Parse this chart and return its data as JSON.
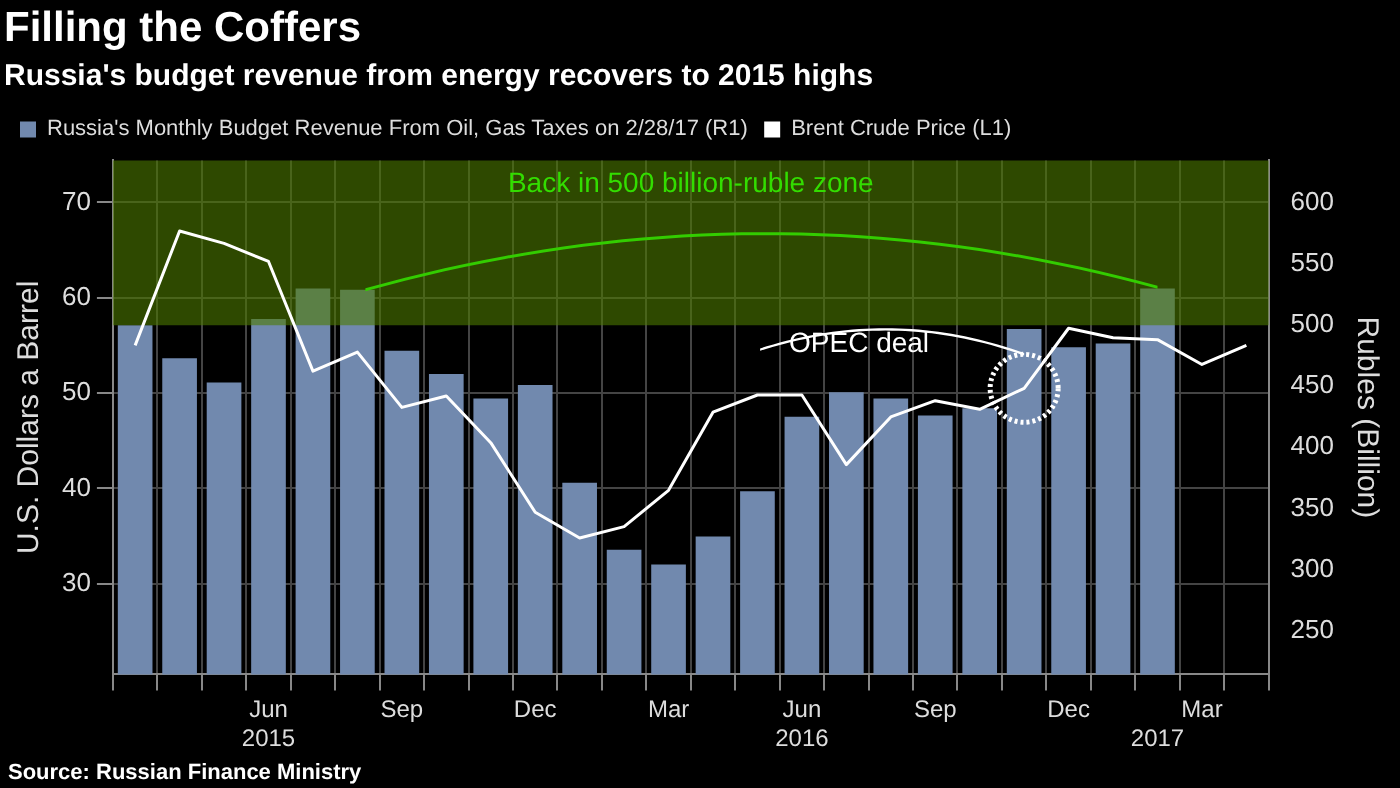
{
  "chart_data": {
    "type": "bar",
    "title": "Filling the Coffers",
    "subtitle": "Russia's budget revenue from energy recovers to 2015 highs",
    "ylabel": "U.S. Dollars a Barrel",
    "y2label": "Rubles (Billion)",
    "categories": [
      null,
      null,
      null,
      "Jun\n2015",
      null,
      null,
      "Sep",
      null,
      null,
      "Dec",
      null,
      null,
      "Mar",
      null,
      null,
      "Jun\n2016",
      null,
      null,
      "Sep",
      null,
      null,
      "Dec",
      null,
      "\n2017",
      "Mar",
      null
    ],
    "series": [
      {
        "name": "Russia's Monthly Budget Revenue From Oil, Gas Taxes on 2/28/17 (R1)",
        "axis": "y2",
        "color": "#7189ae",
        "values": [
          500,
          473,
          453,
          505,
          530,
          529,
          479,
          460,
          440,
          451,
          371,
          316,
          304,
          327,
          364,
          425,
          445,
          440,
          426,
          432,
          497,
          482,
          485,
          530,
          null,
          null
        ]
      },
      {
        "name": "Brent Crude Price (L1)",
        "type": "line",
        "color": "#ffffff",
        "values": [
          55.0,
          67.0,
          65.7,
          63.8,
          52.3,
          54.3,
          48.5,
          49.7,
          44.8,
          37.5,
          34.8,
          36.0,
          39.8,
          48.0,
          49.8,
          49.8,
          42.5,
          47.5,
          49.2,
          48.3,
          50.5,
          56.8,
          55.8,
          55.6,
          53.0,
          55.0
        ]
      }
    ],
    "ylim": [
      20.5,
      74.4
    ],
    "yticks": [
      30,
      40,
      50,
      60,
      70
    ],
    "y2lim": [
      214,
      635
    ],
    "y2ticks": [
      250,
      300,
      350,
      400,
      450,
      500,
      550,
      600
    ],
    "bands": [
      {
        "axis": "y2",
        "from": 500,
        "to": 635,
        "label": "Back in 500 billion-ruble zone",
        "color": "#4d7a00"
      }
    ],
    "annotations": [
      {
        "text": "OPEC deal",
        "y": 50.5
      },
      "Source: Russian Finance Ministry"
    ],
    "grid": true,
    "legend": "top left",
    "marker": "none",
    "line_style": "solid"
  }
}
